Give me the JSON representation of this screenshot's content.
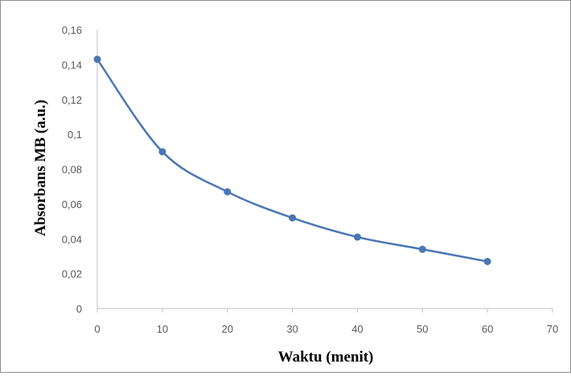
{
  "chart_data": {
    "type": "line",
    "title": "",
    "xlabel": "Waktu (menit)",
    "ylabel": "Absorbans MB (a.u.)",
    "xlim": [
      0,
      70
    ],
    "ylim": [
      0,
      0.16
    ],
    "x_ticks": [
      0,
      10,
      20,
      30,
      40,
      50,
      60,
      70
    ],
    "x_tick_labels": [
      "0",
      "10",
      "20",
      "30",
      "40",
      "50",
      "60",
      "70"
    ],
    "y_ticks": [
      0,
      0.02,
      0.04,
      0.06,
      0.08,
      0.1,
      0.12,
      0.14,
      0.16
    ],
    "y_tick_labels": [
      "0",
      "0,02",
      "0,04",
      "0,06",
      "0,08",
      "0,1",
      "0,12",
      "0,14",
      "0,16"
    ],
    "grid": false,
    "smooth": true,
    "series": [
      {
        "color": "#4a76b4",
        "x": [
          0,
          10,
          20,
          30,
          40,
          50,
          60
        ],
        "y": [
          0.143,
          0.09,
          0.067,
          0.052,
          0.041,
          0.034,
          0.027
        ]
      }
    ]
  }
}
